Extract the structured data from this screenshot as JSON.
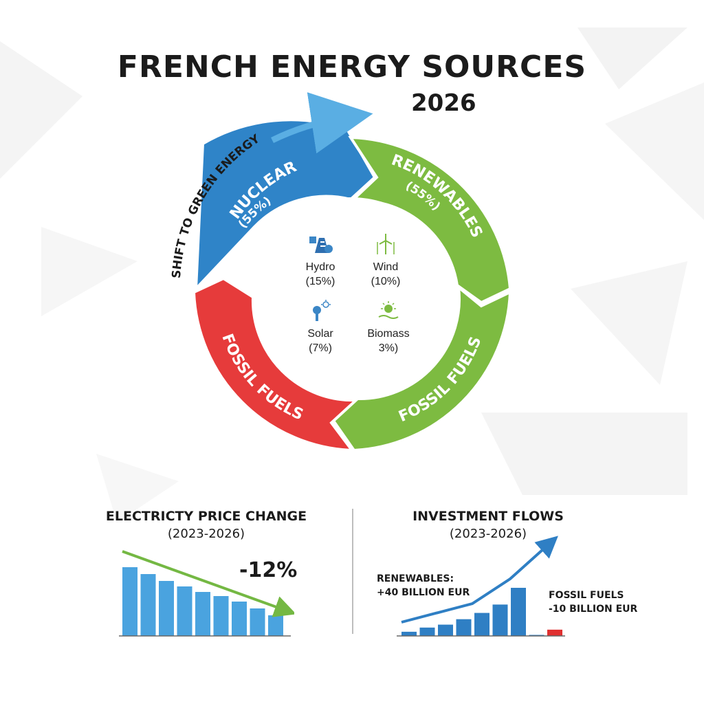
{
  "title": "FRENCH ENERGY SOURCES",
  "year": "2026",
  "ring": {
    "arrow_caption": "SHIFT TO GREEN ENERGY",
    "segments": [
      {
        "label": "NUCLEAR",
        "value_text": "(55%)",
        "color": "#2f84c8"
      },
      {
        "label": "RENEWABLES",
        "value_text": "(55%)",
        "color": "#7dbb41"
      },
      {
        "label": "FOSSIL FUELS",
        "value_text": "",
        "color": "#7dbb41"
      },
      {
        "label": "FOSSIL FUELS",
        "value_text": "",
        "color": "#e63b3b"
      }
    ],
    "center_items": [
      {
        "name": "Hydro",
        "value": "(15%)",
        "icon": "dam-icon"
      },
      {
        "name": "Wind",
        "value": "(10%)",
        "icon": "wind-turbine-icon"
      },
      {
        "name": "Solar",
        "value": "(7%)",
        "icon": "solar-icon"
      },
      {
        "name": "Biomass",
        "value": "3%)",
        "icon": "biomass-sun-icon"
      }
    ]
  },
  "chart_data": [
    {
      "type": "bar",
      "title": "ELECTRICTY PRICE CHANGE",
      "subtitle": "(2023-2026)",
      "annotation": "-12%",
      "trend": "decreasing",
      "values": [
        100,
        90,
        80,
        72,
        64,
        58,
        50,
        40,
        30
      ],
      "color": "#4aa3df",
      "trend_color": "#74b843"
    },
    {
      "type": "bar",
      "title": "INVESTMENT FLOWS",
      "subtitle": "(2023-2026)",
      "trend": "increasing",
      "annotations": [
        {
          "line1": "RENEWABLES:",
          "line2": "+40 BILLION EUR"
        },
        {
          "line1": "FOSSIL FUELS",
          "line2": "-10 BILLION EUR"
        }
      ],
      "series": [
        {
          "values": [
            10,
            20,
            27,
            40,
            55,
            75,
            115
          ],
          "color": "#2f7fc4"
        },
        {
          "values": [
            0,
            15
          ],
          "color": "#e03030"
        }
      ],
      "trend_color": "#2f7fc4"
    }
  ]
}
